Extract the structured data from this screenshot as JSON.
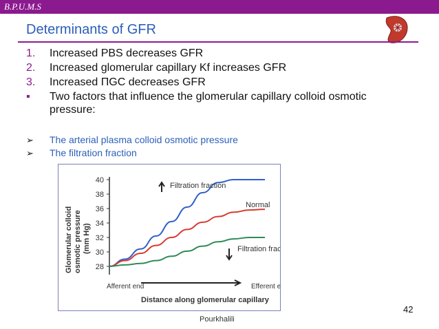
{
  "brand": "B.P.U.M.S",
  "title": "Determinants of GFR",
  "items": [
    {
      "marker": "1.",
      "text": "Increased PBS decreases GFR"
    },
    {
      "marker": "2.",
      "text": "Increased glomerular capillary Kf increases GFR"
    },
    {
      "marker": "3.",
      "text": "Increased ΠGC decreases GFR"
    },
    {
      "marker": "▪",
      "text": "Two factors that influence the glomerular capillary colloid osmotic pressure:"
    }
  ],
  "subitems": [
    {
      "marker": "➢",
      "text": "The arterial plasma colloid osmotic pressure"
    },
    {
      "marker": "➢",
      "text": "The filtration fraction"
    }
  ],
  "page_number": "42",
  "author": "Pourkhalili",
  "colors": {
    "purple": "#8b1a8f",
    "title_blue": "#2b5fb7"
  },
  "figure": {
    "ylabel": "Glomerular colloid osmotic pressure (mm Hg)",
    "annotations": {
      "up": "Filtration fraction",
      "normal": "Normal",
      "down": "Filtration fraction",
      "afferent": "Afferent end",
      "efferent": "Efferent end",
      "distance": "Distance along glomerular capillary"
    }
  },
  "chart_data": {
    "type": "line",
    "title": "",
    "xlabel": "Distance along glomerular capillary",
    "ylabel": "Glomerular colloid osmotic pressure (mm Hg)",
    "x_ticks": [
      "Afferent end",
      "Efferent end"
    ],
    "yticks": [
      28,
      30,
      32,
      34,
      36,
      38,
      40
    ],
    "ylim": [
      28,
      40
    ],
    "xlim": [
      0,
      1
    ],
    "series": [
      {
        "name": "Filtration fraction increased",
        "color": "#2f5fc8",
        "x": [
          0,
          0.1,
          0.2,
          0.3,
          0.4,
          0.5,
          0.6,
          0.7,
          0.8,
          0.9,
          1.0
        ],
        "y": [
          28,
          29,
          30.4,
          32.2,
          34.2,
          36.2,
          38.2,
          39.6,
          40,
          40,
          40
        ]
      },
      {
        "name": "Normal",
        "color": "#d83a30",
        "x": [
          0,
          0.1,
          0.2,
          0.3,
          0.4,
          0.5,
          0.6,
          0.7,
          0.8,
          0.9,
          1.0
        ],
        "y": [
          28,
          28.8,
          29.8,
          30.9,
          32.0,
          33.1,
          34.1,
          34.9,
          35.5,
          35.8,
          35.9
        ]
      },
      {
        "name": "Filtration fraction decreased",
        "color": "#2e8b57",
        "x": [
          0,
          0.1,
          0.2,
          0.3,
          0.4,
          0.5,
          0.6,
          0.7,
          0.8,
          0.9,
          1.0
        ],
        "y": [
          28,
          28.2,
          28.4,
          28.8,
          29.4,
          30.1,
          30.8,
          31.4,
          31.8,
          32.0,
          32.0
        ]
      }
    ]
  }
}
